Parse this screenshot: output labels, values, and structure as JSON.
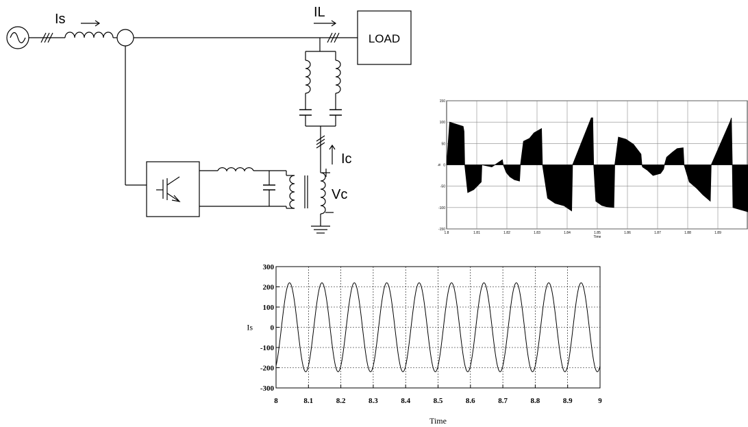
{
  "circuit": {
    "source_current_label": "Is",
    "load_current_label": "IL",
    "load_label": "LOAD",
    "compensator_current_label": "Ic",
    "compensator_voltage_label": "Vc"
  },
  "chart_data": [
    {
      "type": "line",
      "xlabel": "Time",
      "ylabel": "Is",
      "xlim": [
        1.8,
        1.9
      ],
      "ylim": [
        -150,
        150
      ],
      "x_ticks": [
        "1.8",
        "1.81",
        "1.82",
        "1.83",
        "1.84",
        "1.85",
        "1.86",
        "1.87",
        "1.88",
        "1.89"
      ],
      "y_ticks": [
        "150",
        "100",
        "50",
        "0",
        "-50",
        "-100",
        "-150"
      ],
      "grid": true,
      "fill": "#000000",
      "series": [
        {
          "x": [
            1.8,
            1.801,
            1.8055,
            1.8058,
            1.806,
            1.807,
            1.809,
            1.8115,
            1.8117,
            1.815,
            1.8185,
            1.8188,
            1.8198,
            1.821,
            1.8225,
            1.8242,
            1.8245,
            1.8255,
            1.8275,
            1.829,
            1.8315,
            1.8318,
            1.8335,
            1.836,
            1.839,
            1.8415,
            1.8418,
            1.848,
            1.8485,
            1.8488,
            1.8495,
            1.8515,
            1.853,
            1.8555,
            1.8558,
            1.857,
            1.8595,
            1.862,
            1.8645,
            1.8648,
            1.865,
            1.8665,
            1.8685,
            1.871,
            1.872,
            1.8723,
            1.873,
            1.875,
            1.8765,
            1.8785,
            1.8788,
            1.8805,
            1.883,
            1.885,
            1.8875,
            1.8878,
            1.894,
            1.8945,
            1.8948,
            1.895,
            1.9,
            1.9
          ],
          "y": [
            0,
            100,
            90,
            78,
            0,
            -65,
            -58,
            -40,
            0,
            -5,
            12,
            0,
            -18,
            -28,
            -35,
            -38,
            0,
            55,
            62,
            75,
            85,
            0,
            -78,
            -90,
            -96,
            -108,
            0,
            110,
            110,
            0,
            -85,
            -95,
            -98,
            -100,
            0,
            65,
            60,
            48,
            25,
            0,
            -5,
            -12,
            -25,
            -20,
            -10,
            0,
            18,
            30,
            38,
            40,
            0,
            -40,
            -55,
            -70,
            -85,
            0,
            100,
            110,
            0,
            -100,
            -110,
            0
          ]
        }
      ]
    },
    {
      "type": "line",
      "xlabel": "Time",
      "ylabel": "Is",
      "xlim": [
        8,
        9
      ],
      "ylim": [
        -300,
        300
      ],
      "x_ticks": [
        "8",
        "8.1",
        "8.2",
        "8.3",
        "8.4",
        "8.5",
        "8.6",
        "8.7",
        "8.8",
        "8.9",
        "9"
      ],
      "y_ticks": [
        "300",
        "200",
        "100",
        "0",
        "-100",
        "-200",
        "-300"
      ],
      "grid": true,
      "series": [
        {
          "waveform": "sine",
          "amplitude": 220,
          "cycles": 10,
          "phase_deg": -60
        }
      ]
    }
  ]
}
